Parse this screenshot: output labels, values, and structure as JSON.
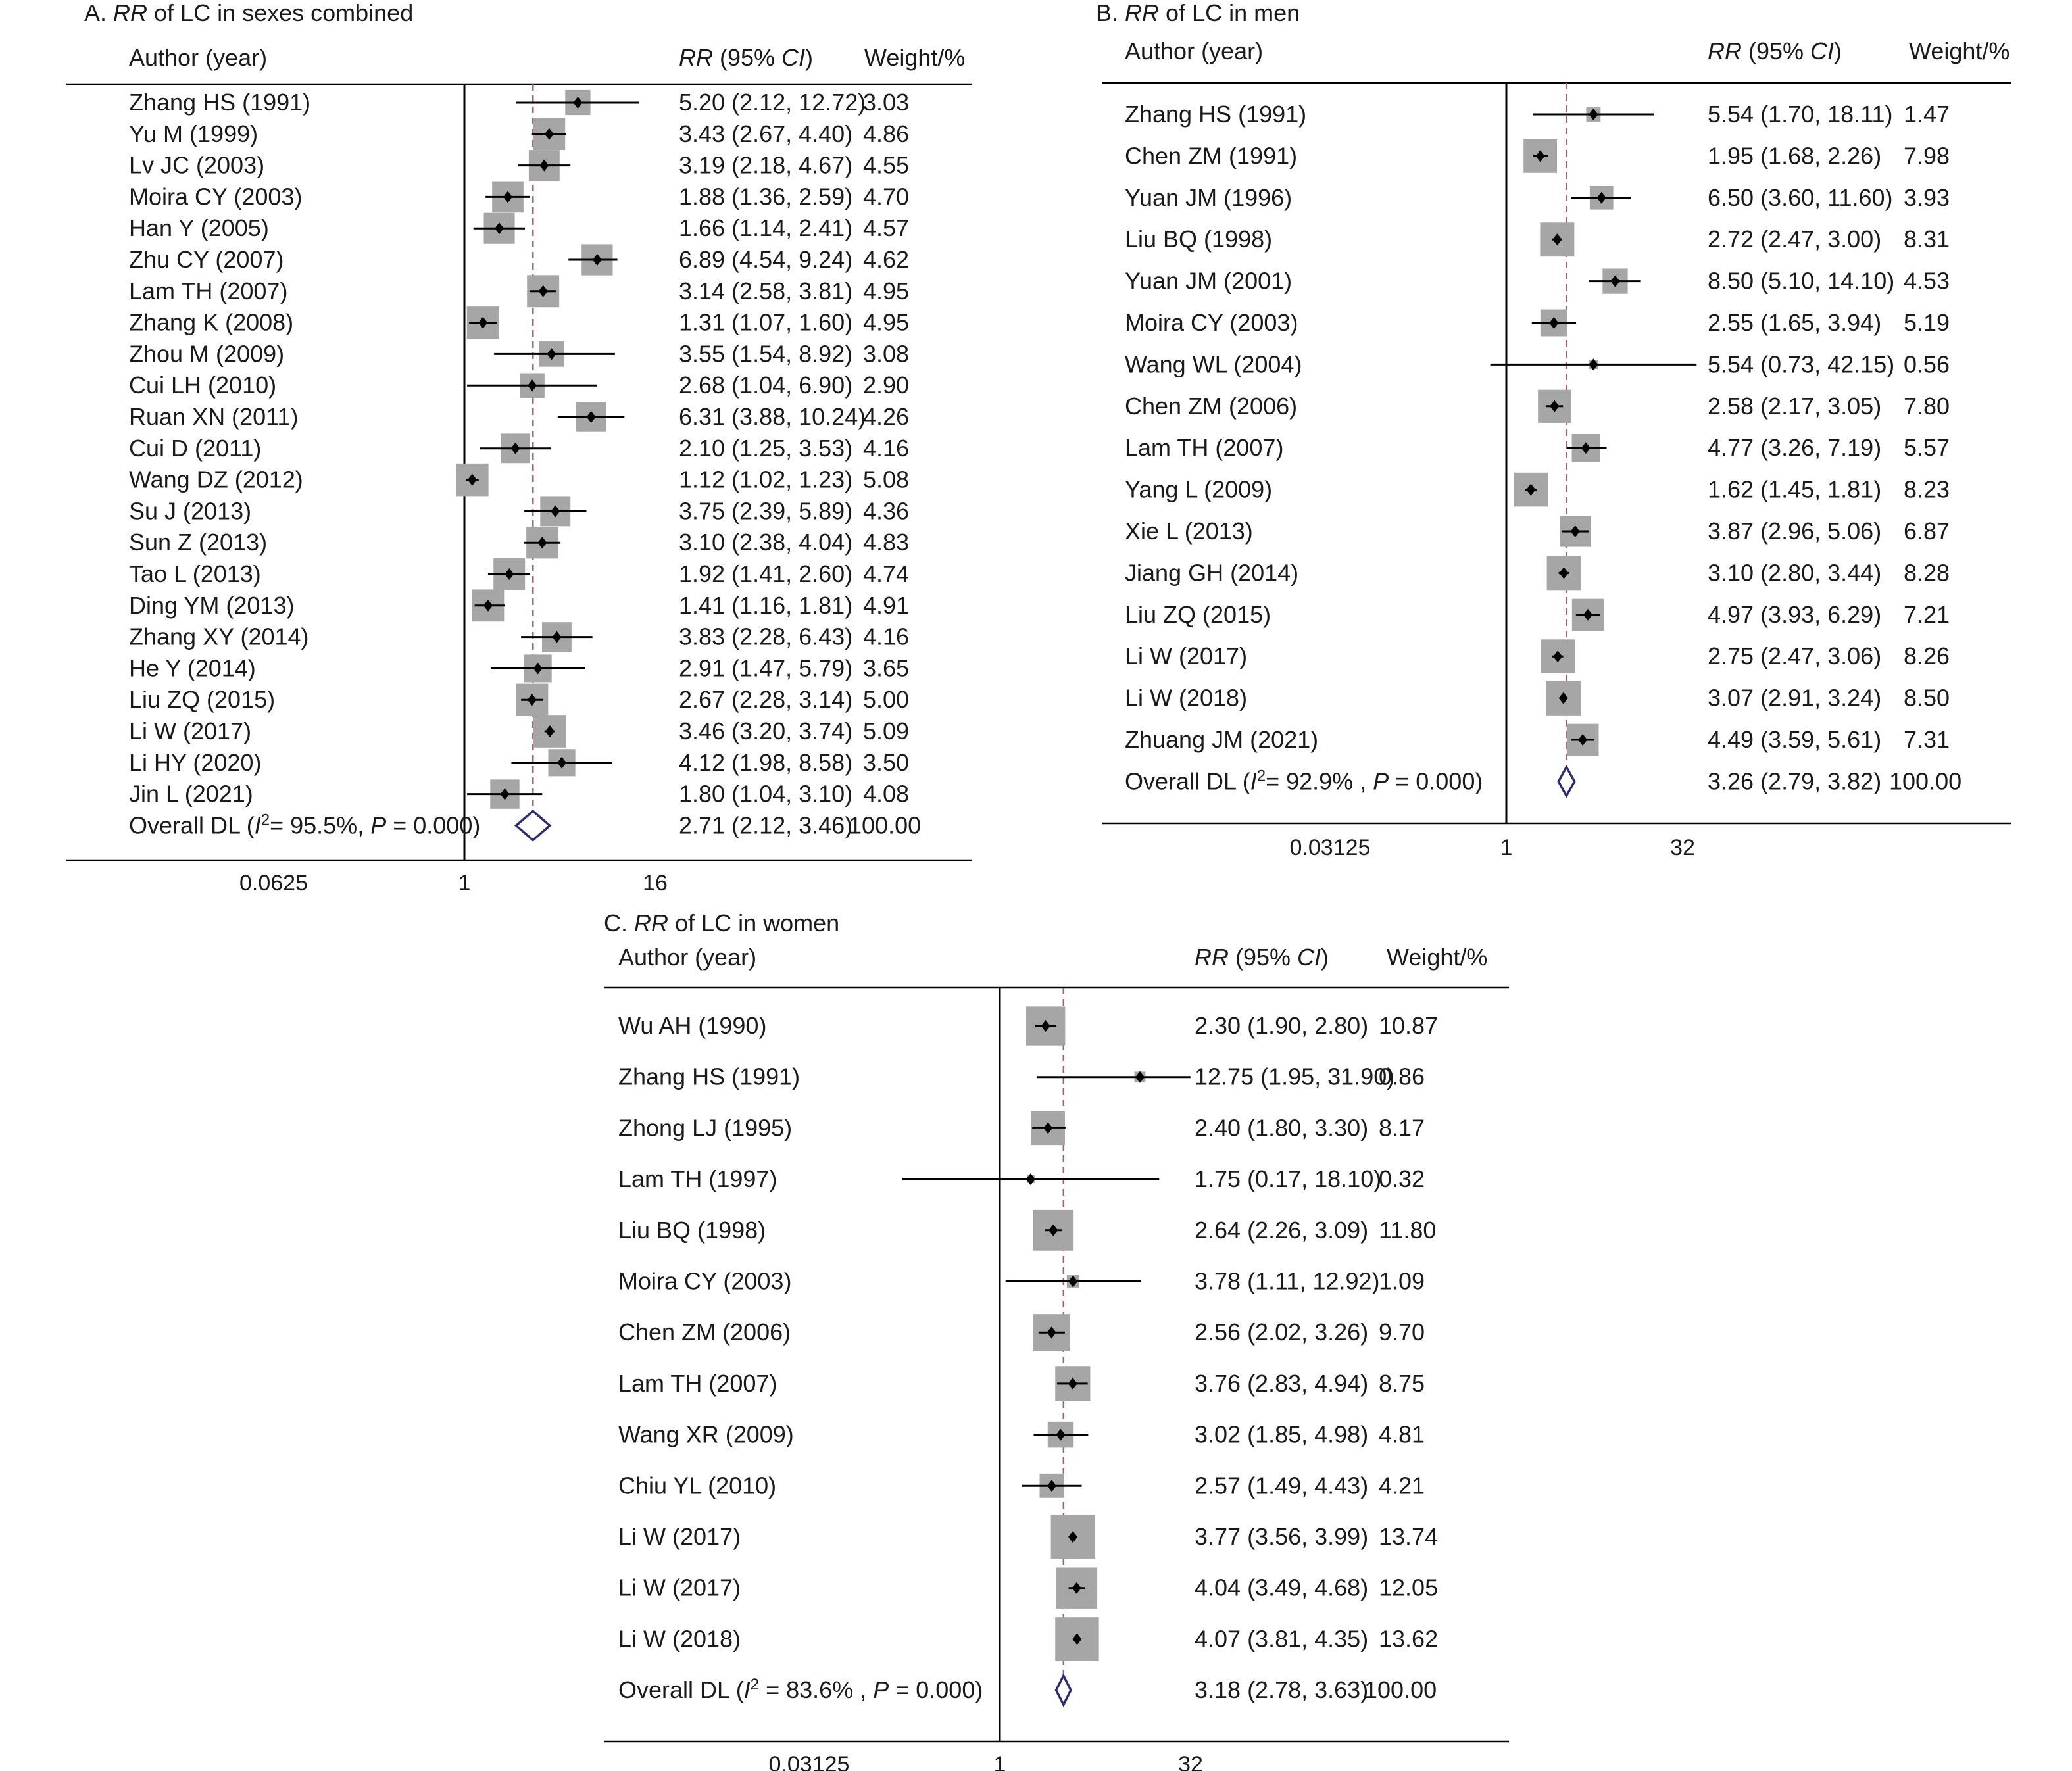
{
  "colors": {
    "text": "#1a1a1a",
    "box": "#a6a6a6",
    "ref_line": "#a0627a",
    "diamond": "#2b2e6b"
  },
  "chart_data": [
    {
      "type": "forest",
      "panel_letter": "A. ",
      "title_italic": "RR",
      "title_rest": " of LC in sexes combined",
      "header_author": "Author (year)",
      "header_rr_italic": "RR",
      "header_rr_mid": " (95% ",
      "header_ci_italic": "CI",
      "header_rr_end": ")",
      "header_weight": "Weight/%",
      "x_scale": "log2",
      "x_ticks": [
        {
          "value": 0.0625,
          "label": "0.0625"
        },
        {
          "value": 1,
          "label": "1"
        },
        {
          "value": 16,
          "label": "16"
        }
      ],
      "studies": [
        {
          "author": "Zhang HS (1991)",
          "rr": 5.2,
          "lo": 2.12,
          "hi": 12.72,
          "ci_text": "5.20 (2.12, 12.72)",
          "weight": "3.03"
        },
        {
          "author": "Yu M (1999)",
          "rr": 3.43,
          "lo": 2.67,
          "hi": 4.4,
          "ci_text": "3.43 (2.67, 4.40)",
          "weight": "4.86"
        },
        {
          "author": "Lv JC (2003)",
          "rr": 3.19,
          "lo": 2.18,
          "hi": 4.67,
          "ci_text": "3.19 (2.18, 4.67)",
          "weight": "4.55"
        },
        {
          "author": "Moira CY (2003)",
          "rr": 1.88,
          "lo": 1.36,
          "hi": 2.59,
          "ci_text": "1.88 (1.36, 2.59)",
          "weight": "4.70"
        },
        {
          "author": "Han Y (2005)",
          "rr": 1.66,
          "lo": 1.14,
          "hi": 2.41,
          "ci_text": "1.66 (1.14, 2.41)",
          "weight": "4.57"
        },
        {
          "author": "Zhu CY (2007)",
          "rr": 6.89,
          "lo": 4.54,
          "hi": 9.24,
          "ci_text": "6.89 (4.54, 9.24)",
          "weight": "4.62"
        },
        {
          "author": "Lam TH (2007)",
          "rr": 3.14,
          "lo": 2.58,
          "hi": 3.81,
          "ci_text": "3.14 (2.58, 3.81)",
          "weight": "4.95"
        },
        {
          "author": "Zhang K (2008)",
          "rr": 1.31,
          "lo": 1.07,
          "hi": 1.6,
          "ci_text": "1.31 (1.07, 1.60)",
          "weight": "4.95"
        },
        {
          "author": "Zhou M (2009)",
          "rr": 3.55,
          "lo": 1.54,
          "hi": 8.92,
          "ci_text": "3.55 (1.54, 8.92)",
          "weight": "3.08"
        },
        {
          "author": "Cui LH (2010)",
          "rr": 2.68,
          "lo": 1.04,
          "hi": 6.9,
          "ci_text": "2.68 (1.04, 6.90)",
          "weight": "2.90"
        },
        {
          "author": "Ruan XN (2011)",
          "rr": 6.31,
          "lo": 3.88,
          "hi": 10.24,
          "ci_text": "6.31 (3.88, 10.24)",
          "weight": "4.26"
        },
        {
          "author": "Cui D (2011)",
          "rr": 2.1,
          "lo": 1.25,
          "hi": 3.53,
          "ci_text": "2.10 (1.25, 3.53)",
          "weight": "4.16"
        },
        {
          "author": "Wang DZ (2012)",
          "rr": 1.12,
          "lo": 1.02,
          "hi": 1.23,
          "ci_text": "1.12 (1.02, 1.23)",
          "weight": "5.08"
        },
        {
          "author": "Su J (2013)",
          "rr": 3.75,
          "lo": 2.39,
          "hi": 5.89,
          "ci_text": "3.75 (2.39, 5.89)",
          "weight": "4.36"
        },
        {
          "author": "Sun Z (2013)",
          "rr": 3.1,
          "lo": 2.38,
          "hi": 4.04,
          "ci_text": "3.10 (2.38, 4.04)",
          "weight": "4.83"
        },
        {
          "author": "Tao L (2013)",
          "rr": 1.92,
          "lo": 1.41,
          "hi": 2.6,
          "ci_text": "1.92 (1.41, 2.60)",
          "weight": "4.74"
        },
        {
          "author": "Ding YM (2013)",
          "rr": 1.41,
          "lo": 1.16,
          "hi": 1.81,
          "ci_text": "1.41 (1.16, 1.81)",
          "weight": "4.91"
        },
        {
          "author": "Zhang XY (2014)",
          "rr": 3.83,
          "lo": 2.28,
          "hi": 6.43,
          "ci_text": "3.83 (2.28, 6.43)",
          "weight": "4.16"
        },
        {
          "author": "He Y (2014)",
          "rr": 2.91,
          "lo": 1.47,
          "hi": 5.79,
          "ci_text": "2.91 (1.47, 5.79)",
          "weight": "3.65"
        },
        {
          "author": "Liu ZQ (2015)",
          "rr": 2.67,
          "lo": 2.28,
          "hi": 3.14,
          "ci_text": "2.67 (2.28, 3.14)",
          "weight": "5.00"
        },
        {
          "author": "Li W (2017)",
          "rr": 3.46,
          "lo": 3.2,
          "hi": 3.74,
          "ci_text": "3.46 (3.20, 3.74)",
          "weight": "5.09"
        },
        {
          "author": "Li HY (2020)",
          "rr": 4.12,
          "lo": 1.98,
          "hi": 8.58,
          "ci_text": "4.12 (1.98, 8.58)",
          "weight": "3.50"
        },
        {
          "author": "Jin L (2021)",
          "rr": 1.8,
          "lo": 1.04,
          "hi": 3.1,
          "ci_text": "1.80 (1.04, 3.10)",
          "weight": "4.08"
        }
      ],
      "overall": {
        "label_prefix": "Overall DL (",
        "label_i2_italic": "I",
        "label_i2_sup": "2",
        "label_mid": "= 95.5%, ",
        "label_p_italic": "P",
        "label_end": " = 0.000)",
        "rr": 2.71,
        "lo": 2.12,
        "hi": 3.46,
        "ci_text": "2.71 (2.12, 3.46)",
        "weight": "100.00"
      }
    },
    {
      "type": "forest",
      "panel_letter": "B. ",
      "title_italic": "RR",
      "title_rest": " of LC in men",
      "header_author": "Author (year)",
      "header_rr_italic": "RR",
      "header_rr_mid": " (95% ",
      "header_ci_italic": "CI",
      "header_rr_end": ")",
      "header_weight": "Weight/%",
      "x_scale": "log2",
      "x_ticks": [
        {
          "value": 0.03125,
          "label": "0.03125"
        },
        {
          "value": 1,
          "label": "1"
        },
        {
          "value": 32,
          "label": "32"
        }
      ],
      "studies": [
        {
          "author": "Zhang HS (1991)",
          "rr": 5.54,
          "lo": 1.7,
          "hi": 18.11,
          "ci_text": "5.54 (1.70, 18.11)",
          "weight": "1.47"
        },
        {
          "author": "Chen ZM (1991)",
          "rr": 1.95,
          "lo": 1.68,
          "hi": 2.26,
          "ci_text": "1.95 (1.68, 2.26)",
          "weight": "7.98"
        },
        {
          "author": "Yuan JM (1996)",
          "rr": 6.5,
          "lo": 3.6,
          "hi": 11.6,
          "ci_text": "6.50 (3.60, 11.60)",
          "weight": "3.93"
        },
        {
          "author": "Liu BQ (1998)",
          "rr": 2.72,
          "lo": 2.47,
          "hi": 3.0,
          "ci_text": "2.72 (2.47, 3.00)",
          "weight": "8.31"
        },
        {
          "author": "Yuan JM (2001)",
          "rr": 8.5,
          "lo": 5.1,
          "hi": 14.1,
          "ci_text": "8.50 (5.10, 14.10)",
          "weight": "4.53"
        },
        {
          "author": "Moira CY (2003)",
          "rr": 2.55,
          "lo": 1.65,
          "hi": 3.94,
          "ci_text": "2.55 (1.65, 3.94)",
          "weight": "5.19"
        },
        {
          "author": "Wang WL (2004)",
          "rr": 5.54,
          "lo": 0.73,
          "hi": 42.15,
          "ci_text": "5.54 (0.73, 42.15)",
          "weight": "0.56"
        },
        {
          "author": "Chen ZM (2006)",
          "rr": 2.58,
          "lo": 2.17,
          "hi": 3.05,
          "ci_text": "2.58 (2.17, 3.05)",
          "weight": "7.80"
        },
        {
          "author": "Lam TH (2007)",
          "rr": 4.77,
          "lo": 3.26,
          "hi": 7.19,
          "ci_text": "4.77 (3.26, 7.19)",
          "weight": "5.57"
        },
        {
          "author": "Yang L (2009)",
          "rr": 1.62,
          "lo": 1.45,
          "hi": 1.81,
          "ci_text": "1.62 (1.45, 1.81)",
          "weight": "8.23"
        },
        {
          "author": "Xie L (2013)",
          "rr": 3.87,
          "lo": 2.96,
          "hi": 5.06,
          "ci_text": "3.87 (2.96, 5.06)",
          "weight": "6.87"
        },
        {
          "author": "Jiang GH (2014)",
          "rr": 3.1,
          "lo": 2.8,
          "hi": 3.44,
          "ci_text": "3.10 (2.80, 3.44)",
          "weight": "8.28"
        },
        {
          "author": "Liu ZQ (2015)",
          "rr": 4.97,
          "lo": 3.93,
          "hi": 6.29,
          "ci_text": "4.97 (3.93, 6.29)",
          "weight": "7.21"
        },
        {
          "author": "Li W (2017)",
          "rr": 2.75,
          "lo": 2.47,
          "hi": 3.06,
          "ci_text": "2.75 (2.47, 3.06)",
          "weight": "8.26"
        },
        {
          "author": "Li W (2018)",
          "rr": 3.07,
          "lo": 2.91,
          "hi": 3.24,
          "ci_text": "3.07 (2.91, 3.24)",
          "weight": "8.50"
        },
        {
          "author": "Zhuang JM (2021)",
          "rr": 4.49,
          "lo": 3.59,
          "hi": 5.61,
          "ci_text": "4.49 (3.59, 5.61)",
          "weight": "7.31"
        }
      ],
      "overall": {
        "label_prefix": "Overall DL (",
        "label_i2_italic": "I",
        "label_i2_sup": "2",
        "label_mid": "= 92.9% , ",
        "label_p_italic": "P",
        "label_end": " = 0.000)",
        "rr": 3.26,
        "lo": 2.79,
        "hi": 3.82,
        "ci_text": "3.26 (2.79, 3.82)",
        "weight": "100.00"
      }
    },
    {
      "type": "forest",
      "panel_letter": "C. ",
      "title_italic": "RR",
      "title_rest": " of LC in women",
      "header_author": "Author (year)",
      "header_rr_italic": "RR",
      "header_rr_mid": " (95% ",
      "header_ci_italic": "CI",
      "header_rr_end": ")",
      "header_weight": "Weight/%",
      "x_scale": "log2",
      "x_ticks": [
        {
          "value": 0.03125,
          "label": "0.03125"
        },
        {
          "value": 1,
          "label": "1"
        },
        {
          "value": 32,
          "label": "32"
        }
      ],
      "studies": [
        {
          "author": "Wu AH (1990)",
          "rr": 2.3,
          "lo": 1.9,
          "hi": 2.8,
          "ci_text": "2.30 (1.90, 2.80)",
          "weight": "10.87"
        },
        {
          "author": "Zhang HS (1991)",
          "rr": 12.75,
          "lo": 1.95,
          "hi": 31.9,
          "ci_text": "12.75 (1.95, 31.90)",
          "weight": "0.86"
        },
        {
          "author": "Zhong LJ (1995)",
          "rr": 2.4,
          "lo": 1.8,
          "hi": 3.3,
          "ci_text": "2.40 (1.80, 3.30)",
          "weight": "8.17"
        },
        {
          "author": "Lam TH (1997)",
          "rr": 1.75,
          "lo": 0.17,
          "hi": 18.1,
          "ci_text": "1.75 (0.17, 18.10)",
          "weight": "0.32"
        },
        {
          "author": "Liu BQ (1998)",
          "rr": 2.64,
          "lo": 2.26,
          "hi": 3.09,
          "ci_text": "2.64 (2.26, 3.09)",
          "weight": "11.80"
        },
        {
          "author": "Moira CY (2003)",
          "rr": 3.78,
          "lo": 1.11,
          "hi": 12.92,
          "ci_text": "3.78 (1.11, 12.92)",
          "weight": "1.09"
        },
        {
          "author": "Chen ZM (2006)",
          "rr": 2.56,
          "lo": 2.02,
          "hi": 3.26,
          "ci_text": "2.56 (2.02, 3.26)",
          "weight": "9.70"
        },
        {
          "author": "Lam TH (2007)",
          "rr": 3.76,
          "lo": 2.83,
          "hi": 4.94,
          "ci_text": "3.76 (2.83, 4.94)",
          "weight": "8.75"
        },
        {
          "author": "Wang XR (2009)",
          "rr": 3.02,
          "lo": 1.85,
          "hi": 4.98,
          "ci_text": "3.02 (1.85, 4.98)",
          "weight": "4.81"
        },
        {
          "author": "Chiu YL (2010)",
          "rr": 2.57,
          "lo": 1.49,
          "hi": 4.43,
          "ci_text": "2.57 (1.49, 4.43)",
          "weight": "4.21"
        },
        {
          "author": "Li W (2017)",
          "rr": 3.77,
          "lo": 3.56,
          "hi": 3.99,
          "ci_text": "3.77 (3.56, 3.99)",
          "weight": "13.74"
        },
        {
          "author": "Li W (2017)",
          "rr": 4.04,
          "lo": 3.49,
          "hi": 4.68,
          "ci_text": "4.04 (3.49, 4.68)",
          "weight": "12.05"
        },
        {
          "author": "Li W (2018)",
          "rr": 4.07,
          "lo": 3.81,
          "hi": 4.35,
          "ci_text": "4.07 (3.81, 4.35)",
          "weight": "13.62"
        }
      ],
      "overall": {
        "label_prefix": "Overall  DL (",
        "label_i2_italic": "I",
        "label_i2_sup": "2",
        "label_mid": " = 83.6% , ",
        "label_p_italic": "P",
        "label_end": " = 0.000)",
        "rr": 3.18,
        "lo": 2.78,
        "hi": 3.63,
        "ci_text": "3.18 (2.78, 3.63)",
        "weight": "100.00"
      }
    }
  ]
}
